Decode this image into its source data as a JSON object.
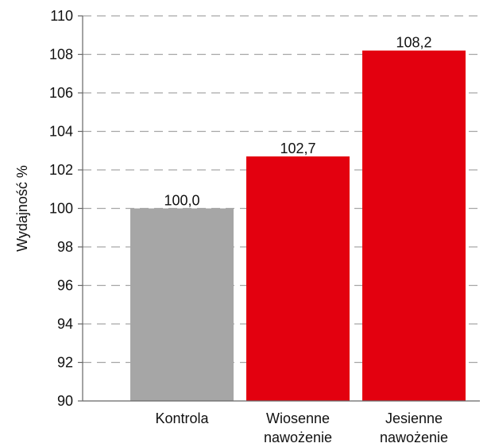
{
  "chart_data": {
    "type": "bar",
    "title": "",
    "xlabel": "",
    "ylabel": "Wydajność %",
    "ylim": [
      90,
      110
    ],
    "yticks": [
      90,
      92,
      94,
      96,
      98,
      100,
      102,
      104,
      106,
      108,
      110
    ],
    "grid": "dashed horizontal",
    "categories": [
      [
        "Kontrola"
      ],
      [
        "Wiosenne",
        "nawożenie"
      ],
      [
        "Jesienne",
        "nawożenie"
      ]
    ],
    "values": [
      100.0,
      102.7,
      108.2
    ],
    "value_labels": [
      "100,0",
      "102,7",
      "108,2"
    ],
    "colors": [
      "#a6a6a6",
      "#e3000f",
      "#e3000f"
    ],
    "colors_meta": {
      "axis": "#666666",
      "grid": "#a6a6a6"
    }
  }
}
